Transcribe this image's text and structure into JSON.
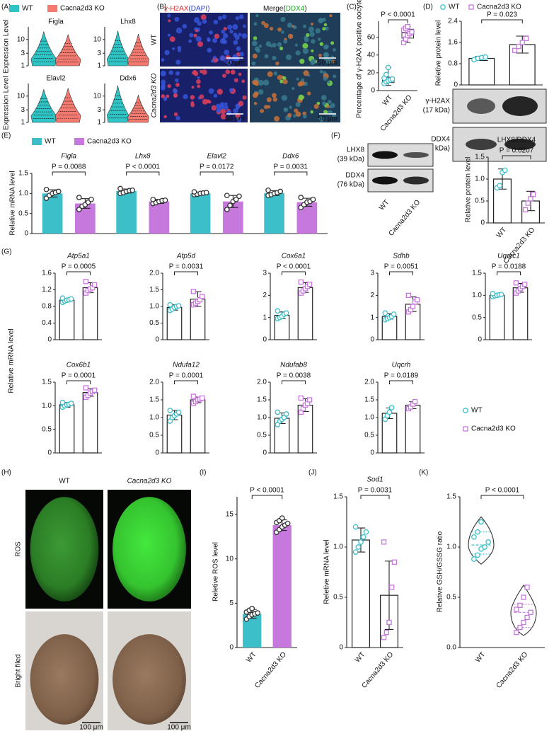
{
  "panel_labels": [
    "(A)",
    "(B)",
    "(C)",
    "(D)",
    "(E)",
    "(F)",
    "(G)",
    "(H)",
    "(I)",
    "(J)",
    "(K)"
  ],
  "micrographs": {
    "b": {
      "headers": [
        [
          {
            "text": "γ-H2AX",
            "color": "#e8262b"
          },
          {
            "text": "(DAPI)",
            "color": "#2b3fd0"
          }
        ],
        [
          {
            "text": "Merge(",
            "color": "#111111"
          },
          {
            "text": "DDX4",
            "color": "#23a823"
          },
          {
            "text": ")",
            "color": "#111111"
          }
        ]
      ],
      "rows": [
        "WT",
        "Cacna2d3 KO"
      ],
      "scale_bar": "50 μm"
    },
    "h": {
      "columns": [
        "WT",
        "Cacna2d3 KO"
      ],
      "rows": [
        "ROS",
        "Bright filed"
      ],
      "scale_bar": "100 μm"
    }
  },
  "blots": {
    "d": [
      {
        "name": "γ-H2AX",
        "size": "(17 kDa)"
      },
      {
        "name": "DDX4",
        "size": "(76 kDa)"
      }
    ],
    "f": {
      "bands": [
        {
          "name": "LHX8",
          "size": "(39 kDa)"
        },
        {
          "name": "DDX4",
          "size": "(76 kDa)"
        }
      ],
      "lanes": [
        "WT",
        "Cacna2d3 KO"
      ]
    }
  },
  "chart_data": [
    {
      "type": "violin-grid",
      "series": [
        {
          "name": "WT",
          "color": "#2ec4c6"
        },
        {
          "name": "Cacna2d3 KO",
          "color": "#f47a70"
        }
      ],
      "genes": [
        "Figla",
        "Lhx8",
        "Elavl2",
        "Ddx6"
      ],
      "ylabel": "Expression Level",
      "ylim": [
        1,
        30
      ],
      "yticks": [
        1,
        3,
        10
      ],
      "log_scale": true
    },
    {
      "type": "box-dot",
      "ylabel": "Percentage of γ-H2AX positive oocytes",
      "categories": [
        "WT",
        "Cacna2d3 KO"
      ],
      "colors": [
        "#3dbfca",
        "#c678dd"
      ],
      "markers": [
        "circle",
        "square"
      ],
      "ylim": [
        0,
        78
      ],
      "yticks": [
        0,
        20,
        40,
        60
      ],
      "boxes": [
        [
          6,
          9,
          12,
          15,
          26
        ],
        [
          54,
          59,
          65,
          69,
          72
        ]
      ],
      "points": [
        [
          8,
          10,
          11,
          12,
          13,
          14,
          18,
          26
        ],
        [
          54,
          58,
          62,
          64,
          66,
          68,
          70,
          72
        ]
      ],
      "p": "P < 0.0001"
    },
    {
      "type": "bar",
      "ylabel": "Reletive protein level",
      "series": [
        {
          "name": "WT",
          "color": "#3dbfca",
          "marker": "circle"
        },
        {
          "name": "Cacna2d3 KO",
          "color": "#c678dd",
          "marker": "square"
        }
      ],
      "filled": false,
      "ylim": [
        0,
        2.4
      ],
      "yticks": [
        0,
        0.8,
        1.6,
        2.4
      ],
      "values": [
        1.0,
        1.52
      ],
      "errors": [
        0.08,
        0.32
      ],
      "points": [
        [
          0.95,
          1.0,
          1.03,
          1.05
        ],
        [
          1.3,
          1.45,
          1.6,
          1.75
        ]
      ],
      "p": "P = 0.023"
    },
    {
      "type": "grouped-bar",
      "ylabel": "Relative mRNA level",
      "series": [
        {
          "name": "WT",
          "color": "#3dbfca"
        },
        {
          "name": "Cacna2d3 KO",
          "color": "#c678dd"
        }
      ],
      "filled": true,
      "point_color": "#333333",
      "ylim": [
        0,
        1.5
      ],
      "yticks": [
        0,
        0.5,
        {
          "value": 1,
          "label": "1.0"
        },
        1.5
      ],
      "groups": [
        {
          "title": "Figla",
          "p": "P = 0.0088",
          "values": [
            1.0,
            0.75
          ],
          "errors": [
            0.09,
            0.12
          ],
          "points": [
            [
              0.88,
              0.95,
              1.0,
              1.02,
              1.05,
              1.1
            ],
            [
              0.6,
              0.68,
              0.72,
              0.78,
              0.85,
              0.9
            ]
          ]
        },
        {
          "title": "Lhx8",
          "p": "P < 0.0001",
          "values": [
            1.06,
            0.8
          ],
          "errors": [
            0.05,
            0.05
          ],
          "points": [
            [
              1.0,
              1.02,
              1.05,
              1.07,
              1.08,
              1.12
            ],
            [
              0.75,
              0.77,
              0.8,
              0.82,
              0.83,
              0.85
            ]
          ]
        },
        {
          "title": "Elavl2",
          "p": "P = 0.0172",
          "values": [
            1.0,
            0.8
          ],
          "errors": [
            0.03,
            0.15
          ],
          "points": [
            [
              0.97,
              0.98,
              1.0,
              1.01,
              1.02,
              1.04
            ],
            [
              0.6,
              0.7,
              0.8,
              0.85,
              0.93,
              0.95
            ]
          ]
        },
        {
          "title": "Ddx6",
          "p": "P = 0.0031",
          "values": [
            1.01,
            0.78
          ],
          "errors": [
            0.06,
            0.1
          ],
          "points": [
            [
              0.95,
              0.97,
              1.0,
              1.02,
              1.05,
              1.08
            ],
            [
              0.65,
              0.72,
              0.78,
              0.8,
              0.85,
              0.9
            ]
          ]
        }
      ]
    },
    {
      "type": "bar",
      "title": "LHX8/DDX4",
      "ylabel": "Relative protein level",
      "categories": [
        "WT",
        "Cacna2d3 KO"
      ],
      "colors": [
        "#3dbfca",
        "#c678dd"
      ],
      "markers": [
        "circle",
        "square"
      ],
      "filled": false,
      "ylim": [
        0,
        1.5
      ],
      "yticks": [
        0,
        0.5,
        {
          "value": 1,
          "label": "1.0"
        },
        1.5
      ],
      "values": [
        1.0,
        0.5
      ],
      "errors": [
        0.23,
        0.22
      ],
      "points": [
        [
          0.8,
          0.85,
          1.15,
          1.2
        ],
        [
          0.3,
          0.45,
          0.55,
          0.65
        ]
      ],
      "p": "P = 0.0207"
    },
    {
      "type": "bar-grid",
      "ylabel": "Relative mRNA level",
      "filled": false,
      "series": [
        {
          "name": "WT",
          "color": "#3dbfca",
          "marker": "circle"
        },
        {
          "name": "Cacna2d3 KO",
          "color": "#c678dd",
          "marker": "square"
        }
      ],
      "groups": [
        {
          "title": "Atp5a1",
          "p": "P = 0.0005",
          "ylim": [
            0,
            1.6
          ],
          "yticks": [
            0,
            0.4,
            0.8,
            1.2,
            1.6
          ],
          "values": [
            0.95,
            1.25
          ],
          "errors": [
            0.04,
            0.12
          ],
          "points": [
            [
              0.9,
              0.93,
              0.95,
              0.96,
              0.98,
              1.0
            ],
            [
              1.12,
              1.18,
              1.22,
              1.25,
              1.32,
              1.4
            ]
          ]
        },
        {
          "title": "Atp5d",
          "p": "P = 0.0031",
          "ylim": [
            0,
            2
          ],
          "yticks": [
            0,
            0.5,
            {
              "value": 1,
              "label": "1.0"
            },
            1.5,
            {
              "value": 2,
              "label": "2.0"
            }
          ],
          "values": [
            0.97,
            1.22
          ],
          "errors": [
            0.08,
            0.22
          ],
          "points": [
            [
              0.88,
              0.92,
              0.97,
              1.0,
              1.02,
              1.05
            ],
            [
              1.05,
              1.1,
              1.15,
              1.2,
              1.3,
              1.45
            ]
          ]
        },
        {
          "title": "Cox6a1",
          "p": "P < 0.0001",
          "ylim": [
            0,
            3
          ],
          "yticks": [
            0,
            1,
            2,
            3
          ],
          "values": [
            1.1,
            2.35
          ],
          "errors": [
            0.15,
            0.22
          ],
          "points": [
            [
              0.95,
              1.0,
              1.05,
              1.15,
              1.2,
              1.3
            ],
            [
              2.1,
              2.2,
              2.3,
              2.4,
              2.5,
              2.6
            ]
          ]
        },
        {
          "title": "Sdhb",
          "p": "P = 0.0051",
          "ylim": [
            0,
            3
          ],
          "yticks": [
            0,
            1,
            2,
            3
          ],
          "values": [
            1.05,
            1.6
          ],
          "errors": [
            0.12,
            0.33
          ],
          "points": [
            [
              0.9,
              0.95,
              1.0,
              1.05,
              1.15,
              1.2
            ],
            [
              1.25,
              1.35,
              1.5,
              1.7,
              1.8,
              2.0
            ]
          ]
        },
        {
          "title": "Uqcrc1",
          "p": "P = 0.0188",
          "ylim": [
            0,
            1.5
          ],
          "yticks": [
            0,
            0.5,
            {
              "value": 1,
              "label": "1.0"
            },
            1.5
          ],
          "values": [
            1.0,
            1.17
          ],
          "errors": [
            0.03,
            0.1
          ],
          "points": [
            [
              0.97,
              0.99,
              1.0,
              1.01,
              1.02,
              1.04
            ],
            [
              1.05,
              1.1,
              1.15,
              1.2,
              1.25,
              1.28
            ]
          ]
        },
        {
          "title": "Cox6b1",
          "p": "P = 0.0001",
          "ylim": [
            0,
            1.5
          ],
          "yticks": [
            0,
            0.5,
            {
              "value": 1,
              "label": "1.0"
            },
            1.5
          ],
          "values": [
            1.02,
            1.28
          ],
          "errors": [
            0.05,
            0.08
          ],
          "points": [
            [
              0.97,
              1.0,
              1.02,
              1.03,
              1.05,
              1.07
            ],
            [
              1.18,
              1.22,
              1.27,
              1.3,
              1.33,
              1.38
            ]
          ]
        },
        {
          "title": "Ndufa12",
          "p": "P = 0.0001",
          "ylim": [
            0,
            2
          ],
          "yticks": [
            0,
            0.5,
            {
              "value": 1,
              "label": "1.0"
            },
            1.5,
            {
              "value": 2,
              "label": "2.0"
            }
          ],
          "values": [
            1.07,
            1.5
          ],
          "errors": [
            0.13,
            0.08
          ],
          "points": [
            [
              0.9,
              1.0,
              1.05,
              1.1,
              1.15,
              1.2
            ],
            [
              1.4,
              1.45,
              1.5,
              1.52,
              1.55,
              1.6
            ]
          ]
        },
        {
          "title": "Ndufab8",
          "p": "P = 0.0038",
          "ylim": [
            0,
            2
          ],
          "yticks": [
            0,
            0.5,
            {
              "value": 1,
              "label": "1.0"
            },
            1.5,
            {
              "value": 2,
              "label": "2.0"
            }
          ],
          "values": [
            0.98,
            1.35
          ],
          "errors": [
            0.15,
            0.18
          ],
          "points": [
            [
              0.8,
              0.9,
              0.95,
              1.0,
              1.1,
              1.15
            ],
            [
              1.15,
              1.25,
              1.35,
              1.4,
              1.5,
              1.55
            ]
          ]
        },
        {
          "title": "Uqcrh",
          "p": "P = 0.0189",
          "ylim": [
            0,
            2
          ],
          "yticks": [
            0,
            0.5,
            {
              "value": 1,
              "label": "1.0"
            },
            1.5,
            {
              "value": 2,
              "label": "2.0"
            }
          ],
          "values": [
            1.12,
            1.35
          ],
          "errors": [
            0.15,
            0.1
          ],
          "points": [
            [
              0.95,
              1.05,
              1.15,
              1.28
            ],
            [
              1.25,
              1.3,
              1.38,
              1.45
            ]
          ]
        }
      ]
    },
    {
      "type": "bar",
      "ylabel": "Reletive ROS level",
      "categories": [
        "WT",
        "Cacna2d3 KO"
      ],
      "colors": [
        "#3dbfca",
        "#c678dd"
      ],
      "filled": true,
      "point_color": "#333333",
      "ylim": [
        0,
        17
      ],
      "yticks": [
        0,
        5,
        10,
        15
      ],
      "values": [
        3.8,
        13.8
      ],
      "errors": [
        0.5,
        0.6
      ],
      "points": [
        [
          3.2,
          3.5,
          3.7,
          3.8,
          3.9,
          4.0,
          4.2,
          4.4
        ],
        [
          13.0,
          13.3,
          13.6,
          13.8,
          14.0,
          14.1,
          14.3,
          14.6
        ]
      ],
      "p": "P < 0.0001"
    },
    {
      "type": "bar",
      "title": "Sod1",
      "ylabel": "Reletive mRNA level",
      "categories": [
        "WT",
        "Cacna2d3 KO"
      ],
      "colors": [
        "#3dbfca",
        "#c678dd"
      ],
      "markers": [
        "circle",
        "square"
      ],
      "filled": false,
      "ylim": [
        0,
        1.5
      ],
      "yticks": [
        0,
        0.5,
        {
          "value": 1,
          "label": "1.0"
        },
        1.5
      ],
      "values": [
        1.07,
        0.52
      ],
      "errors": [
        0.12,
        0.34
      ],
      "points": [
        [
          0.95,
          1.0,
          1.05,
          1.1,
          1.15,
          1.2
        ],
        [
          0.1,
          0.15,
          0.25,
          0.6,
          0.85,
          1.05
        ]
      ],
      "p": "P = 0.0031"
    },
    {
      "type": "violin",
      "ylabel": "Relative GSH/GSSG ratio",
      "categories": [
        "WT",
        "Cacna2d3 KO"
      ],
      "colors": [
        "#3dbfca",
        "#c678dd"
      ],
      "markers": [
        "circle",
        "square"
      ],
      "ylim": [
        0,
        1.5
      ],
      "yticks": [
        {
          "value": 0,
          "label": "0.0"
        },
        0.5,
        {
          "value": 1,
          "label": "1.0"
        },
        1.5
      ],
      "violins": [
        [
          0.83,
          0.93,
          1.02,
          1.15,
          1.3
        ],
        [
          0.12,
          0.2,
          0.35,
          0.43,
          0.62
        ]
      ],
      "points": [
        [
          0.88,
          0.92,
          0.98,
          1.0,
          1.05,
          1.1,
          1.15,
          1.25
        ],
        [
          0.15,
          0.2,
          0.25,
          0.3,
          0.35,
          0.38,
          0.42,
          0.5,
          0.6
        ]
      ],
      "p": "P < 0.0001"
    }
  ]
}
